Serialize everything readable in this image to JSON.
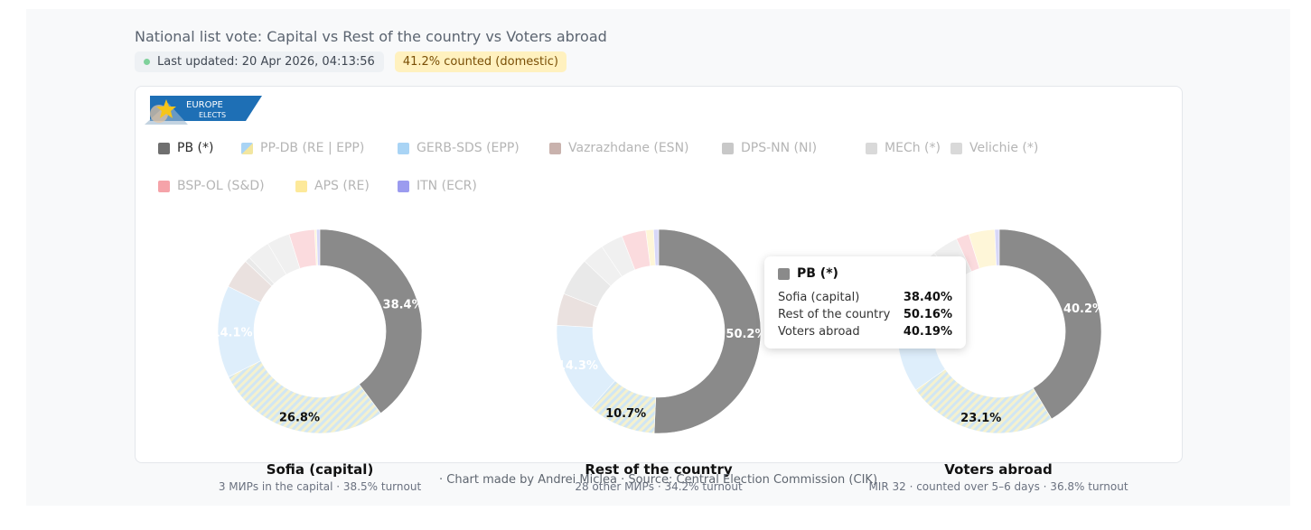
{
  "header": {
    "title": "National list vote: Capital vs Rest of the country vs Voters abroad",
    "last_updated": "Last updated: 20 Apr 2026, 04:13:56",
    "counted_badge": "41.2% counted (domestic)"
  },
  "logo": {
    "line1": "EUROPE",
    "line2": "ELECTS"
  },
  "chart_data": {
    "type": "pie",
    "variant": "donut",
    "legend": [
      {
        "name": "PB (*)",
        "color": "#8a8a8a",
        "active": true
      },
      {
        "name": "PP-DB (RE | EPP)",
        "color": "#f2e6a0",
        "active": false
      },
      {
        "name": "GERB-SDS (EPP)",
        "color": "#a9d4f5",
        "active": false
      },
      {
        "name": "Vazrazhdane (ESN)",
        "color": "#c9b2ad",
        "active": false
      },
      {
        "name": "DPS-NN (NI)",
        "color": "#c8c8c8",
        "active": false
      },
      {
        "name": "MECh (*)",
        "color": "#d9d9d9",
        "active": false
      },
      {
        "name": "Velichie (*)",
        "color": "#d9d9d9",
        "active": false
      },
      {
        "name": "BSP-OL (S&D)",
        "color": "#f5a3a9",
        "active": false
      },
      {
        "name": "APS (RE)",
        "color": "#fde99a",
        "active": false
      },
      {
        "name": "ITN (ECR)",
        "color": "#9b9bef",
        "active": false
      }
    ],
    "charts": [
      {
        "title": "Sofia (capital)",
        "subtitle": "3 МИРs in the capital · 38.5% turnout",
        "slices": [
          {
            "party": "PB (*)",
            "value": 38.4
          },
          {
            "party": "PP-DB (RE | EPP)",
            "value": 26.8
          },
          {
            "party": "GERB-SDS (EPP)",
            "value": 14.1
          },
          {
            "party": "Vazrazhdane (ESN)",
            "value": 4.6
          },
          {
            "party": "DPS-NN (NI)",
            "value": 0.8
          },
          {
            "party": "MECh (*)",
            "value": 3.5
          },
          {
            "party": "Velichie (*)",
            "value": 3.5
          },
          {
            "party": "BSP-OL (S&D)",
            "value": 3.9
          },
          {
            "party": "APS (RE)",
            "value": 0.3
          },
          {
            "party": "ITN (ECR)",
            "value": 0.5
          }
        ],
        "labels": [
          "38.4%",
          "26.8%",
          "14.1%"
        ]
      },
      {
        "title": "Rest of the country",
        "subtitle": "28 other МИРs · 34.2% turnout",
        "slices": [
          {
            "party": "PB (*)",
            "value": 50.2
          },
          {
            "party": "PP-DB (RE | EPP)",
            "value": 10.7
          },
          {
            "party": "GERB-SDS (EPP)",
            "value": 14.3
          },
          {
            "party": "Vazrazhdane (ESN)",
            "value": 5.0
          },
          {
            "party": "DPS-NN (NI)",
            "value": 6.0
          },
          {
            "party": "MECh (*)",
            "value": 3.5
          },
          {
            "party": "Velichie (*)",
            "value": 3.5
          },
          {
            "party": "BSP-OL (S&D)",
            "value": 3.8
          },
          {
            "party": "APS (RE)",
            "value": 1.2
          },
          {
            "party": "ITN (ECR)",
            "value": 0.8
          }
        ],
        "labels": [
          "50.2%",
          "10.7%",
          "14.3%"
        ]
      },
      {
        "title": "Voters abroad",
        "subtitle": "MIR 32 · counted over 5–6 days · 36.8% turnout",
        "slices": [
          {
            "party": "PB (*)",
            "value": 40.2
          },
          {
            "party": "PP-DB (RE | EPP)",
            "value": 23.1
          },
          {
            "party": "GERB-SDS (EPP)",
            "value": 7.0
          },
          {
            "party": "Vazrazhdane (ESN)",
            "value": 8.0
          },
          {
            "party": "DPS-NN (NI)",
            "value": 3.0
          },
          {
            "party": "MECh (*)",
            "value": 5.0
          },
          {
            "party": "Velichie (*)",
            "value": 4.0
          },
          {
            "party": "BSP-OL (S&D)",
            "value": 2.0
          },
          {
            "party": "APS (RE)",
            "value": 4.0
          },
          {
            "party": "ITN (ECR)",
            "value": 0.7
          }
        ],
        "labels": [
          "40.2%",
          "23.1%"
        ]
      }
    ]
  },
  "tooltip": {
    "title": "PB (*)",
    "rows": [
      {
        "label": "Sofia (capital)",
        "value": "38.40%"
      },
      {
        "label": "Rest of the country",
        "value": "50.16%"
      },
      {
        "label": "Voters abroad",
        "value": "40.19%"
      }
    ]
  },
  "credit": "· Chart made by Andrei Miclea · Source: Central Election Commission (CIK)"
}
